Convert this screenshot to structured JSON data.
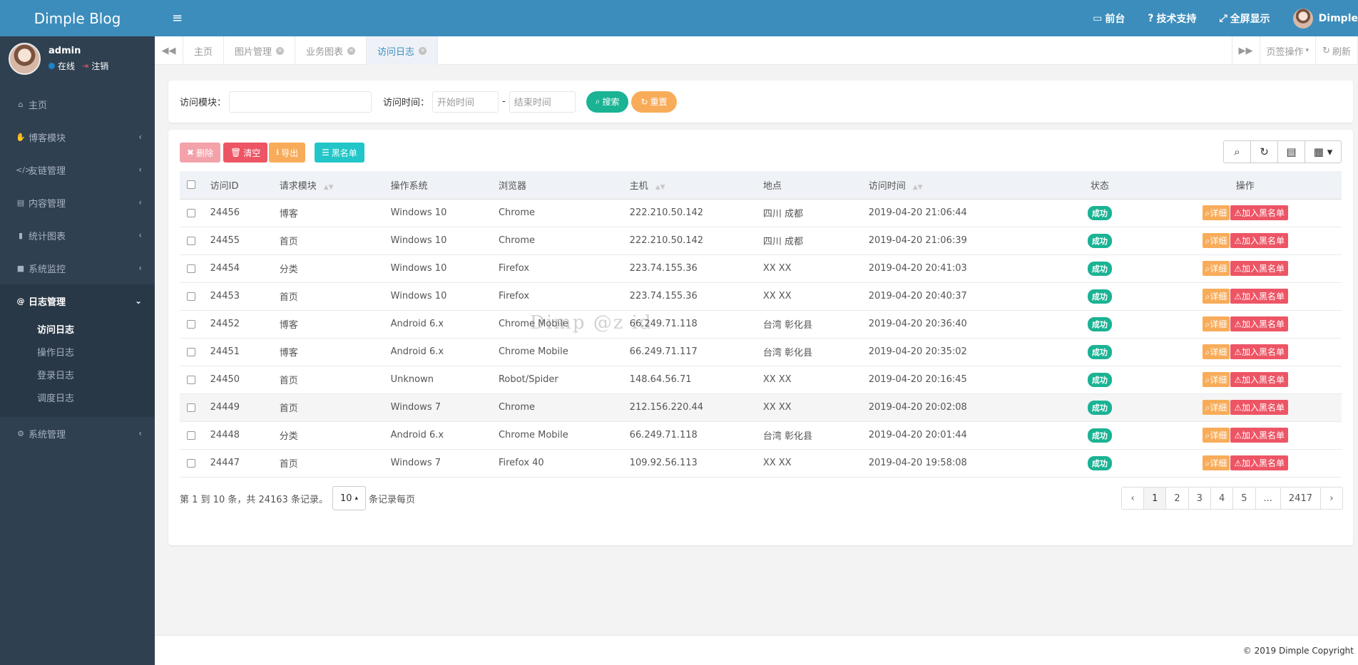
{
  "app": {
    "title": "Dimple Blog"
  },
  "profile": {
    "name": "admin",
    "status": "在线",
    "logout": "注销"
  },
  "sidebar": {
    "items": [
      {
        "label": "主页",
        "icon": "home-icon",
        "glyph": "⌂"
      },
      {
        "label": "博客模块",
        "icon": "hand-icon",
        "glyph": "✋"
      },
      {
        "label": "友链管理",
        "icon": "code-icon",
        "glyph": "</>"
      },
      {
        "label": "内容管理",
        "icon": "archive-icon",
        "glyph": "▤"
      },
      {
        "label": "统计图表",
        "icon": "bar-chart-icon",
        "glyph": "▮"
      },
      {
        "label": "系统监控",
        "icon": "video-icon",
        "glyph": "■"
      },
      {
        "label": "日志管理",
        "icon": "at-icon",
        "glyph": "@"
      },
      {
        "label": "系统管理",
        "icon": "gear-icon",
        "glyph": "⚙"
      }
    ],
    "log_sub": [
      "访问日志",
      "操作日志",
      "登录日志",
      "调度日志"
    ]
  },
  "topbar": {
    "menu_icon": "≡",
    "front": "前台",
    "support": "技术支持",
    "fullscreen": "全屏显示",
    "user": "Dimple"
  },
  "tabs": {
    "items": [
      "主页",
      "图片管理",
      "业务图表",
      "访问日志"
    ],
    "page_ops": "页签操作",
    "refresh": "刷新"
  },
  "search": {
    "module_label": "访问模块：",
    "module_value": "",
    "time_label": "访问时间：",
    "start_placeholder": "开始时间",
    "sep": "-",
    "end_placeholder": "结束时间",
    "search_btn": "搜索",
    "reset_btn": "重置"
  },
  "toolbar": {
    "delete": "删除",
    "clear": "清空",
    "export": "导出",
    "blacklist": "黑名单"
  },
  "table": {
    "headers": [
      "访问ID",
      "请求模块",
      "操作系统",
      "浏览器",
      "主机",
      "地点",
      "访问时间",
      "状态",
      "操作"
    ],
    "status_label": "成功",
    "detail_label": "详细",
    "black_label": "加入黑名单",
    "rows": [
      [
        "24456",
        "博客",
        "Windows 10",
        "Chrome",
        "222.210.50.142",
        "四川 成都",
        "2019-04-20 21:06:44"
      ],
      [
        "24455",
        "首页",
        "Windows 10",
        "Chrome",
        "222.210.50.142",
        "四川 成都",
        "2019-04-20 21:06:39"
      ],
      [
        "24454",
        "分类",
        "Windows 10",
        "Firefox",
        "223.74.155.36",
        "XX XX",
        "2019-04-20 20:41:03"
      ],
      [
        "24453",
        "首页",
        "Windows 10",
        "Firefox",
        "223.74.155.36",
        "XX XX",
        "2019-04-20 20:40:37"
      ],
      [
        "24452",
        "博客",
        "Android 6.x",
        "Chrome Mobile",
        "66.249.71.118",
        "台湾 彰化县",
        "2019-04-20 20:36:40"
      ],
      [
        "24451",
        "博客",
        "Android 6.x",
        "Chrome Mobile",
        "66.249.71.117",
        "台湾 彰化县",
        "2019-04-20 20:35:02"
      ],
      [
        "24450",
        "首页",
        "Unknown",
        "Robot/Spider",
        "148.64.56.71",
        "XX XX",
        "2019-04-20 20:16:45"
      ],
      [
        "24449",
        "首页",
        "Windows 7",
        "Chrome",
        "212.156.220.44",
        "XX XX",
        "2019-04-20 20:02:08"
      ],
      [
        "24448",
        "分类",
        "Android 6.x",
        "Chrome Mobile",
        "66.249.71.118",
        "台湾 彰化县",
        "2019-04-20 20:01:44"
      ],
      [
        "24447",
        "首页",
        "Windows 7",
        "Firefox 40",
        "109.92.56.113",
        "XX XX",
        "2019-04-20 19:58:08"
      ]
    ],
    "highlighted_row": 7
  },
  "pagination": {
    "info": "第 1 到 10 条，共 24163 条记录。",
    "page_size": "10",
    "per_page_suffix": "条记录每页",
    "pages": [
      "‹",
      "1",
      "2",
      "3",
      "4",
      "5",
      "...",
      "2417",
      "›"
    ],
    "active": "1"
  },
  "watermark": "Dimp   @z id",
  "footer": "© 2019 Dimple Copyright",
  "colors": {
    "primary": "#3c8dbc",
    "sidebar": "#2f4050",
    "success": "#1ab394",
    "warning": "#f8ac59",
    "danger": "#ed5565",
    "info": "#23c6c8"
  }
}
